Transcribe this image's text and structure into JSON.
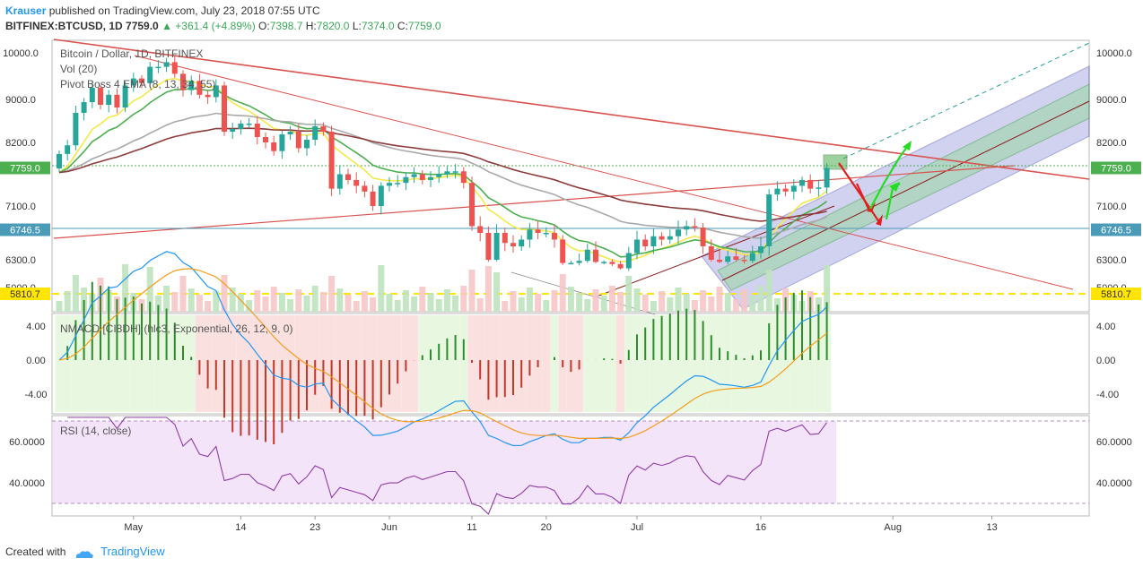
{
  "header": {
    "author": "Krauser",
    "published": "published on TradingView.com, July 23, 2018 07:55 UTC",
    "symbol": "BITFINEX:BTCUSD, 1D",
    "price": "7759.0",
    "change": "+361.4 (+4.89%)",
    "o_label": "O:",
    "o": "7398.7",
    "h_label": "H:",
    "h": "7820.0",
    "l_label": "L:",
    "l": "7374.0",
    "c_label": "C:",
    "c": "7759.0"
  },
  "legend": {
    "title": "Bitcoin / Dollar, 1D, BITFINEX",
    "vol": "Vol (20)",
    "ema": "Pivot Boss 4 EMA (8, 13, 34, 55)",
    "macd": "NMACD [CI8DH] (hlc3, Exponential, 26, 12, 9, 0)",
    "rsi": "RSI (14, close)"
  },
  "footer": {
    "created": "Created with",
    "brand": "TradingView"
  },
  "colors": {
    "up": "#26a69a",
    "down": "#ef5350",
    "accent": "#2196f3"
  },
  "chart_data": {
    "type": "candlestick",
    "x_start": "2018-04-22",
    "x_ticks": [
      {
        "label": "May",
        "day": 9
      },
      {
        "label": "14",
        "day": 22
      },
      {
        "label": "23",
        "day": 31
      },
      {
        "label": "Jun",
        "day": 40
      },
      {
        "label": "11",
        "day": 50
      },
      {
        "label": "20",
        "day": 59
      },
      {
        "label": "Jul",
        "day": 70
      },
      {
        "label": "16",
        "day": 85
      },
      {
        "label": "Aug",
        "day": 101
      },
      {
        "label": "13",
        "day": 113
      }
    ],
    "price_axis": {
      "ticks": [
        "10000.0",
        "9000.0",
        "8200.0",
        "7100.0",
        "6300.0",
        "5000.0"
      ],
      "tick_values": [
        10000,
        9000,
        8200,
        7100,
        6300,
        5000
      ]
    },
    "price_labels": [
      {
        "value": "7759.0",
        "level": 7759,
        "color": "#4caf50"
      },
      {
        "value": "6746.5",
        "level": 6746.5,
        "color": "#4a9bb8"
      },
      {
        "value": "5810.7",
        "level": 5810.7,
        "color": "#ffe500"
      }
    ],
    "close": [
      8000,
      8150,
      8750,
      8950,
      9250,
      8900,
      9100,
      8850,
      9300,
      9450,
      9350,
      9700,
      9700,
      9800,
      9550,
      9200,
      9400,
      9100,
      9050,
      9300,
      8400,
      8450,
      8550,
      8550,
      8300,
      8200,
      8050,
      8350,
      8400,
      8100,
      8250,
      8500,
      8400,
      7400,
      7650,
      7550,
      7450,
      7350,
      7100,
      7450,
      7500,
      7500,
      7600,
      7650,
      7550,
      7600,
      7650,
      7700,
      7700,
      7500,
      6800,
      6700,
      6300,
      6700,
      6550,
      6500,
      6600,
      6750,
      6700,
      6700,
      6600,
      6150,
      6150,
      6250,
      6450,
      6200,
      6200,
      6100,
      5900,
      6400,
      6600,
      6500,
      6650,
      6600,
      6650,
      6750,
      6800,
      6780,
      6500,
      6300,
      6200,
      6350,
      6300,
      6250,
      6400,
      6500,
      7300,
      7400,
      7350,
      7450,
      7550,
      7400,
      7420,
      7759
    ],
    "volume_axis": {
      "ticks": [
        "5000.0"
      ],
      "tick_values": [
        5000
      ]
    },
    "macd_axis": {
      "ticks": [
        "4.00",
        "0.00",
        "-4.00"
      ],
      "tick_values": [
        4,
        0,
        -4
      ]
    },
    "rsi_axis": {
      "ticks": [
        "60.0000",
        "40.0000"
      ],
      "tick_values": [
        60,
        40
      ],
      "range": [
        27,
        72
      ]
    }
  }
}
